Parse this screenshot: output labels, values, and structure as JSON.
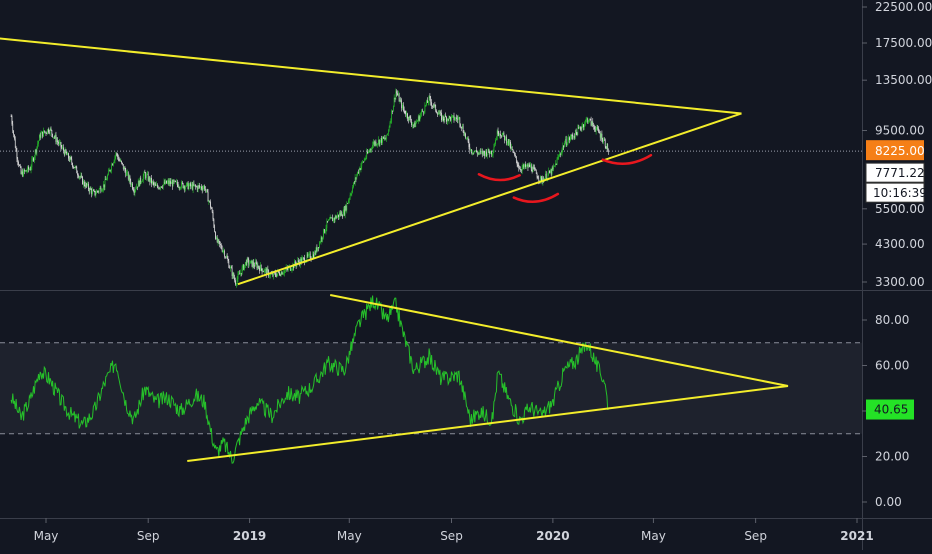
{
  "chart_data": [
    {
      "type": "candlestick",
      "pane": "price",
      "scale": "log",
      "y_ticks": [
        "22500.00",
        "17500.00",
        "13500.00",
        "9500.00",
        "5500.00",
        "4300.00",
        "3300.00"
      ],
      "y_tick_values": [
        22500,
        17500,
        13500,
        9500,
        5500,
        4300,
        3300
      ],
      "last_price_label": "8225.00",
      "last_price": 8225,
      "crosshair_label": "7771.22",
      "countdown_label": "10:16:39",
      "close_series": [
        [
          "2018-03-20",
          10500
        ],
        [
          "2018-03-26",
          8200
        ],
        [
          "2018-04-01",
          7000
        ],
        [
          "2018-04-12",
          7300
        ],
        [
          "2018-04-24",
          9200
        ],
        [
          "2018-05-05",
          9600
        ],
        [
          "2018-05-20",
          8400
        ],
        [
          "2018-06-01",
          7600
        ],
        [
          "2018-06-15",
          6600
        ],
        [
          "2018-06-28",
          6100
        ],
        [
          "2018-07-10",
          6500
        ],
        [
          "2018-07-24",
          8100
        ],
        [
          "2018-08-05",
          7100
        ],
        [
          "2018-08-15",
          6300
        ],
        [
          "2018-08-28",
          7000
        ],
        [
          "2018-09-10",
          6400
        ],
        [
          "2018-09-25",
          6600
        ],
        [
          "2018-10-10",
          6500
        ],
        [
          "2018-10-28",
          6400
        ],
        [
          "2018-11-08",
          6400
        ],
        [
          "2018-11-16",
          5500
        ],
        [
          "2018-11-22",
          4400
        ],
        [
          "2018-12-01",
          4100
        ],
        [
          "2018-12-15",
          3300
        ],
        [
          "2018-12-28",
          3800
        ],
        [
          "2019-01-10",
          3700
        ],
        [
          "2019-01-28",
          3450
        ],
        [
          "2019-02-15",
          3600
        ],
        [
          "2019-03-01",
          3800
        ],
        [
          "2019-03-20",
          4000
        ],
        [
          "2019-04-05",
          5000
        ],
        [
          "2019-04-25",
          5400
        ],
        [
          "2019-05-12",
          7200
        ],
        [
          "2019-05-30",
          8700
        ],
        [
          "2019-06-15",
          9000
        ],
        [
          "2019-06-26",
          12500
        ],
        [
          "2019-07-05",
          11000
        ],
        [
          "2019-07-18",
          9800
        ],
        [
          "2019-08-05",
          11800
        ],
        [
          "2019-08-20",
          10400
        ],
        [
          "2019-09-10",
          10300
        ],
        [
          "2019-09-24",
          8300
        ],
        [
          "2019-10-05",
          8100
        ],
        [
          "2019-10-20",
          8200
        ],
        [
          "2019-10-27",
          9500
        ],
        [
          "2019-11-08",
          8800
        ],
        [
          "2019-11-22",
          7300
        ],
        [
          "2019-12-05",
          7400
        ],
        [
          "2019-12-18",
          6700
        ],
        [
          "2020-01-01",
          7200
        ],
        [
          "2020-01-15",
          8700
        ],
        [
          "2020-01-28",
          9300
        ],
        [
          "2020-02-12",
          10300
        ],
        [
          "2020-02-25",
          9400
        ],
        [
          "2020-03-03",
          8800
        ],
        [
          "2020-03-08",
          8225
        ]
      ],
      "annotations": {
        "lines": [
          {
            "x1": "2018-01-25",
            "y1": 18500,
            "x2": "2020-08-15",
            "y2": 10700
          },
          {
            "x1": "2018-12-18",
            "y1": 3250,
            "x2": "2020-08-15",
            "y2": 10700
          }
        ],
        "arcs": [
          {
            "x1": "2019-10-04",
            "y1": 7000,
            "x2": "2019-11-22",
            "y2": 6950,
            "depth": "small"
          },
          {
            "x1": "2019-11-15",
            "y1": 5950,
            "x2": "2020-01-07",
            "y2": 6100,
            "depth": "small"
          },
          {
            "x1": "2020-03-01",
            "y1": 7750,
            "x2": "2020-04-28",
            "y2": 8000,
            "depth": "small"
          }
        ]
      }
    },
    {
      "type": "line",
      "pane": "rsi",
      "y_ticks": [
        "80.00",
        "60.00",
        "40.00",
        "20.00",
        "0.00"
      ],
      "y_tick_values": [
        80,
        60,
        40,
        20,
        0
      ],
      "band": [
        30,
        70
      ],
      "last_value_label": "40.65",
      "last_value": 40.65,
      "series": [
        [
          "2018-03-20",
          46
        ],
        [
          "2018-03-26",
          42
        ],
        [
          "2018-04-01",
          37
        ],
        [
          "2018-04-12",
          45
        ],
        [
          "2018-04-24",
          58
        ],
        [
          "2018-05-05",
          54
        ],
        [
          "2018-05-20",
          44
        ],
        [
          "2018-06-01",
          38
        ],
        [
          "2018-06-15",
          34
        ],
        [
          "2018-06-28",
          40
        ],
        [
          "2018-07-10",
          52
        ],
        [
          "2018-07-24",
          62
        ],
        [
          "2018-08-05",
          44
        ],
        [
          "2018-08-15",
          36
        ],
        [
          "2018-08-28",
          50
        ],
        [
          "2018-09-10",
          44
        ],
        [
          "2018-09-25",
          46
        ],
        [
          "2018-10-10",
          40
        ],
        [
          "2018-10-28",
          47
        ],
        [
          "2018-11-08",
          44
        ],
        [
          "2018-11-16",
          30
        ],
        [
          "2018-11-22",
          22
        ],
        [
          "2018-12-01",
          26
        ],
        [
          "2018-12-11",
          19
        ],
        [
          "2018-12-28",
          36
        ],
        [
          "2019-01-10",
          44
        ],
        [
          "2019-01-28",
          38
        ],
        [
          "2019-02-15",
          48
        ],
        [
          "2019-03-01",
          46
        ],
        [
          "2019-03-20",
          52
        ],
        [
          "2019-04-05",
          61
        ],
        [
          "2019-04-25",
          58
        ],
        [
          "2019-05-12",
          78
        ],
        [
          "2019-05-30",
          89
        ],
        [
          "2019-06-15",
          80
        ],
        [
          "2019-06-26",
          87
        ],
        [
          "2019-07-05",
          74
        ],
        [
          "2019-07-18",
          58
        ],
        [
          "2019-08-05",
          64
        ],
        [
          "2019-08-20",
          54
        ],
        [
          "2019-09-10",
          56
        ],
        [
          "2019-09-24",
          36
        ],
        [
          "2019-10-05",
          40
        ],
        [
          "2019-10-20",
          36
        ],
        [
          "2019-10-27",
          57
        ],
        [
          "2019-11-08",
          46
        ],
        [
          "2019-11-22",
          36
        ],
        [
          "2019-12-05",
          42
        ],
        [
          "2019-12-18",
          38
        ],
        [
          "2020-01-01",
          44
        ],
        [
          "2020-01-15",
          58
        ],
        [
          "2020-01-28",
          62
        ],
        [
          "2020-02-12",
          70
        ],
        [
          "2020-02-25",
          58
        ],
        [
          "2020-03-03",
          54
        ],
        [
          "2020-03-08",
          40.65
        ]
      ],
      "annotations": {
        "lines": [
          {
            "x1": "2019-04-08",
            "y1": 91,
            "x2": "2020-10-10",
            "y2": 51
          },
          {
            "x1": "2018-10-18",
            "y1": 18,
            "x2": "2020-10-10",
            "y2": 51
          }
        ]
      }
    }
  ],
  "x_axis": {
    "ticks": [
      {
        "label": "May",
        "date": "2018-05-01"
      },
      {
        "label": "Sep",
        "date": "2018-09-01"
      },
      {
        "label": "2019",
        "date": "2019-01-01"
      },
      {
        "label": "May",
        "date": "2019-05-01"
      },
      {
        "label": "Sep",
        "date": "2019-09-01"
      },
      {
        "label": "2020",
        "date": "2020-01-01"
      },
      {
        "label": "May",
        "date": "2020-05-01"
      },
      {
        "label": "Sep",
        "date": "2020-09-01"
      },
      {
        "label": "2021",
        "date": "2021-01-01"
      }
    ]
  },
  "colors": {
    "background": "#131722",
    "grid": "#2a2e39",
    "text": "#d1d4dc",
    "up": "#26c02a",
    "down": "#e6e6e6",
    "rsi": "#26c02a",
    "trendline": "#f3ed2b",
    "annotation": "#e8171e",
    "last_price_bg": "#f57f17",
    "rsi_value_bg": "#24e226",
    "band_fill": "#1e222d",
    "dashed": "#8a8e99"
  }
}
